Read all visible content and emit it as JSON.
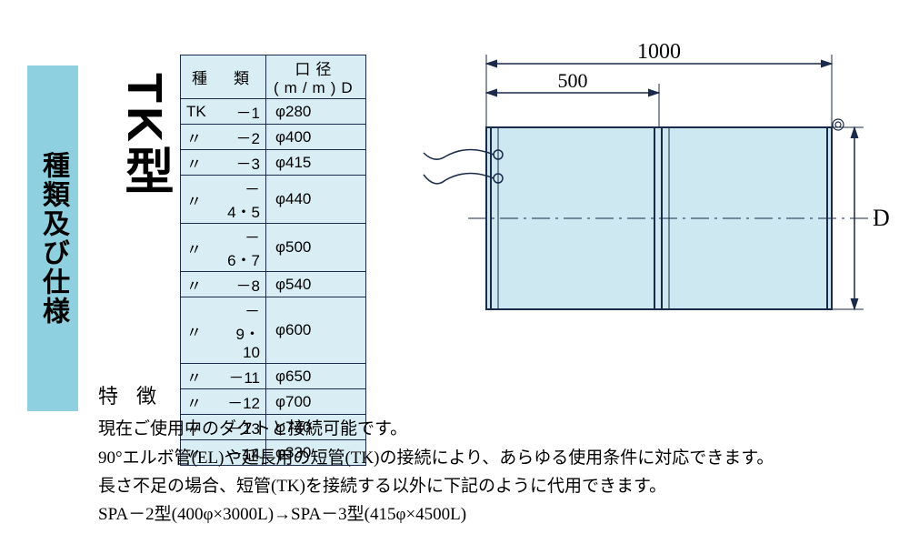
{
  "side_label": "種類及び仕様",
  "type_label": "TK型",
  "table": {
    "header_type": "種　類",
    "header_dia": "口径(m/m)D",
    "rows": [
      {
        "a": "TK",
        "b": "－1",
        "d": "φ280"
      },
      {
        "a": "〃",
        "b": "－2",
        "d": "φ400"
      },
      {
        "a": "〃",
        "b": "－3",
        "d": "φ415"
      },
      {
        "a": "〃",
        "b": "－4・5",
        "d": "φ440"
      },
      {
        "a": "〃",
        "b": "－6・7",
        "d": "φ500"
      },
      {
        "a": "〃",
        "b": "－8",
        "d": "φ540"
      },
      {
        "a": "〃",
        "b": "－9・10",
        "d": "φ600"
      },
      {
        "a": "〃",
        "b": "－11",
        "d": "φ650"
      },
      {
        "a": "〃",
        "b": "－12",
        "d": "φ700"
      },
      {
        "a": "〃",
        "b": "－13",
        "d": "φ740"
      },
      {
        "a": "〃",
        "b": "－14",
        "d": "φ330"
      }
    ]
  },
  "diagram": {
    "dim_1000": "1000",
    "dim_500": "500",
    "dim_D": "D",
    "colors": {
      "stroke": "#1a2a4a",
      "fill": "#cde8f0",
      "bg": "#ffffff"
    }
  },
  "features": {
    "heading": "特徴",
    "lines": [
      "現在ご使用中のダクトと接続可能です。",
      "90°エルボ管(EL)や延長用の短管(TK)の接続により、あらゆる使用条件に対応できます。",
      "長さ不足の場合、短管(TK)を接続する以外に下記のように代用できます。",
      "SPA－2型(400φ×3000L)→SPA－3型(415φ×4500L)"
    ]
  }
}
